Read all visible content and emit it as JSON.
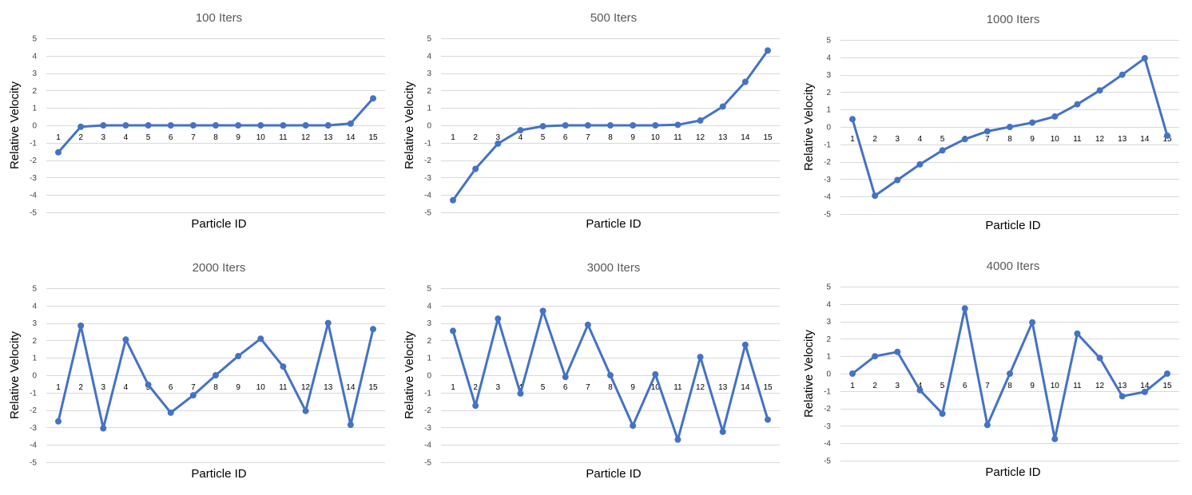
{
  "chart_data": [
    {
      "type": "line",
      "title": "100 Iters",
      "xlabel": "Particle ID",
      "ylabel": "Relative Velocity",
      "ylim": [
        -5,
        5
      ],
      "yticks": [
        "5",
        "4",
        "3",
        "2",
        "1",
        "0",
        "-1",
        "-2",
        "-3",
        "-4",
        "-5"
      ],
      "categories": [
        "1",
        "2",
        "3",
        "4",
        "5",
        "6",
        "7",
        "8",
        "9",
        "10",
        "11",
        "12",
        "13",
        "14",
        "15"
      ],
      "series": [
        {
          "values": [
            -1.55,
            -0.08,
            0,
            0,
            0,
            0,
            0,
            0,
            0,
            0,
            0,
            0,
            0,
            0.1,
            1.55
          ]
        }
      ],
      "grid": true,
      "color": "#4472c4"
    },
    {
      "type": "line",
      "title": "500 Iters",
      "xlabel": "Particle ID",
      "ylabel": "Relative Velocity",
      "ylim": [
        -5,
        5
      ],
      "yticks": [
        "5",
        "4",
        "3",
        "2",
        "1",
        "0",
        "-1",
        "-2",
        "-3",
        "-4",
        "-5"
      ],
      "categories": [
        "1",
        "2",
        "3",
        "4",
        "5",
        "6",
        "7",
        "8",
        "9",
        "10",
        "11",
        "12",
        "13",
        "14",
        "15"
      ],
      "series": [
        {
          "values": [
            -4.3,
            -2.5,
            -1.05,
            -0.28,
            -0.05,
            0,
            0,
            0,
            0,
            0,
            0.03,
            0.28,
            1.08,
            2.5,
            4.3
          ]
        }
      ],
      "grid": true,
      "color": "#4472c4"
    },
    {
      "type": "line",
      "title": "1000 Iters",
      "xlabel": "Particle ID",
      "ylabel": "Relative Velocity",
      "ylim": [
        -5,
        5
      ],
      "yticks": [
        "5",
        "4",
        "3",
        "2",
        "1",
        "0",
        "-1",
        "-2",
        "-3",
        "-4",
        "-5"
      ],
      "categories": [
        "1",
        "2",
        "3",
        "4",
        "5",
        "6",
        "7",
        "8",
        "9",
        "10",
        "11",
        "12",
        "13",
        "14",
        "15"
      ],
      "series": [
        {
          "values": [
            0.45,
            -3.95,
            -3.05,
            -2.15,
            -1.35,
            -0.7,
            -0.25,
            0,
            0.25,
            0.6,
            1.3,
            2.1,
            3.0,
            3.95,
            -0.5
          ]
        }
      ],
      "grid": true,
      "color": "#4472c4"
    },
    {
      "type": "line",
      "title": "2000 Iters",
      "xlabel": "Particle ID",
      "ylabel": "Relative Velocity",
      "ylim": [
        -5,
        5
      ],
      "yticks": [
        "5",
        "4",
        "3",
        "2",
        "1",
        "0",
        "-1",
        "-2",
        "-3",
        "-4",
        "-5"
      ],
      "categories": [
        "1",
        "2",
        "3",
        "4",
        "5",
        "6",
        "7",
        "8",
        "9",
        "10",
        "11",
        "12",
        "13",
        "14",
        "15"
      ],
      "series": [
        {
          "values": [
            -2.65,
            2.85,
            -3.05,
            2.05,
            -0.55,
            -2.15,
            -1.15,
            0,
            1.1,
            2.1,
            0.5,
            -2.05,
            3.0,
            -2.85,
            2.65
          ]
        }
      ],
      "grid": true,
      "color": "#4472c4"
    },
    {
      "type": "line",
      "title": "3000 Iters",
      "xlabel": "Particle ID",
      "ylabel": "Relative Velocity",
      "ylim": [
        -5,
        5
      ],
      "yticks": [
        "5",
        "4",
        "3",
        "2",
        "1",
        "0",
        "-1",
        "-2",
        "-3",
        "-4",
        "-5"
      ],
      "categories": [
        "1",
        "2",
        "3",
        "4",
        "5",
        "6",
        "7",
        "8",
        "9",
        "10",
        "11",
        "12",
        "13",
        "14",
        "15"
      ],
      "series": [
        {
          "values": [
            2.55,
            -1.75,
            3.25,
            -1.05,
            3.7,
            -0.1,
            2.9,
            0,
            -2.9,
            0.05,
            -3.7,
            1.05,
            -3.25,
            1.75,
            -2.55
          ]
        }
      ],
      "grid": true,
      "color": "#4472c4"
    },
    {
      "type": "line",
      "title": "4000 Iters",
      "xlabel": "Particle ID",
      "ylabel": "Relative Velocity",
      "ylim": [
        -5,
        5
      ],
      "yticks": [
        "5",
        "4",
        "3",
        "2",
        "1",
        "0",
        "-1",
        "-2",
        "-3",
        "-4",
        "-5"
      ],
      "categories": [
        "1",
        "2",
        "3",
        "4",
        "5",
        "6",
        "7",
        "8",
        "9",
        "10",
        "11",
        "12",
        "13",
        "14",
        "15"
      ],
      "series": [
        {
          "values": [
            0,
            1.0,
            1.25,
            -0.95,
            -2.3,
            3.75,
            -2.95,
            0,
            2.95,
            -3.75,
            2.3,
            0.9,
            -1.3,
            -1.05,
            0
          ]
        }
      ],
      "grid": true,
      "color": "#4472c4"
    }
  ]
}
